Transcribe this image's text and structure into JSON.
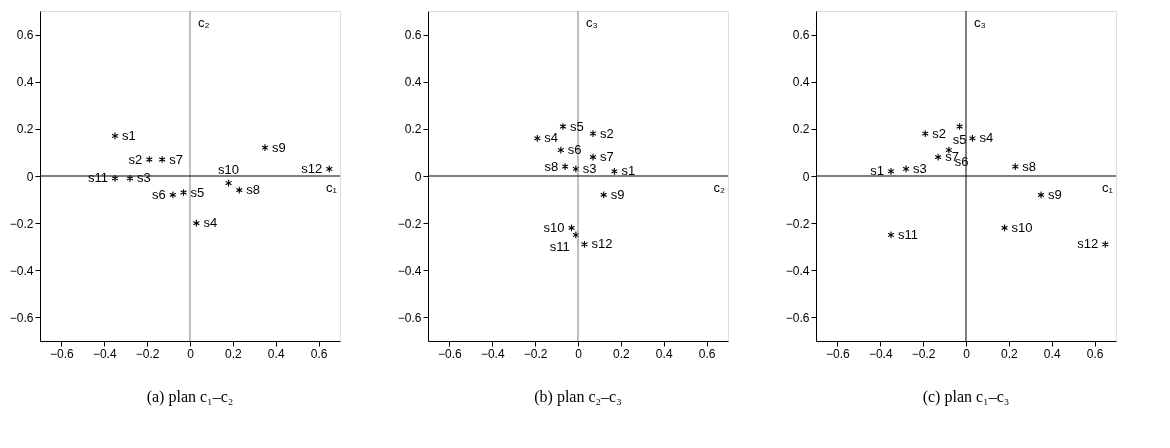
{
  "chart_data": [
    {
      "type": "scatter",
      "title": "(a) plan c₁–c₂",
      "xlabel": "c₁",
      "ylabel": "c₂",
      "marker": "cross",
      "color": "#000000",
      "grid": false,
      "x": [
        -0.35,
        -0.19,
        -0.28,
        0.03,
        -0.03,
        -0.08,
        -0.13,
        0.23,
        0.35,
        0.18,
        -0.35,
        0.65
      ],
      "values": [
        0.17,
        0.07,
        -0.01,
        -0.2,
        -0.07,
        -0.08,
        0.07,
        -0.06,
        0.12,
        -0.03,
        -0.01,
        0.03
      ],
      "xlim": [
        -0.7,
        0.7
      ],
      "ylim": [
        -0.7,
        0.7
      ],
      "xticks": [
        -0.6,
        -0.4,
        -0.2,
        0,
        0.2,
        0.4,
        0.6
      ],
      "yticks": [
        -0.6,
        -0.4,
        -0.2,
        0,
        0.2,
        0.4,
        0.6
      ],
      "ref_lines": [
        {
          "axis": "x",
          "value": 0,
          "color": "#808080"
        },
        {
          "axis": "y",
          "value": 0,
          "color": "#000000"
        }
      ],
      "annotations": [
        {
          "text": "s1",
          "x": -0.35,
          "y": 0.17
        },
        {
          "text": "s2",
          "x": -0.19,
          "y": 0.07
        },
        {
          "text": "s3",
          "x": -0.28,
          "y": -0.01
        },
        {
          "text": "s4",
          "x": 0.03,
          "y": -0.2
        },
        {
          "text": "s5",
          "x": -0.03,
          "y": -0.07
        },
        {
          "text": "s6",
          "x": -0.08,
          "y": -0.08
        },
        {
          "text": "s7",
          "x": -0.13,
          "y": 0.07
        },
        {
          "text": "s8",
          "x": 0.23,
          "y": -0.06
        },
        {
          "text": "s9",
          "x": 0.35,
          "y": 0.12
        },
        {
          "text": "s10",
          "x": 0.18,
          "y": -0.03
        },
        {
          "text": "s11",
          "x": -0.35,
          "y": -0.01
        },
        {
          "text": "s12",
          "x": 0.65,
          "y": 0.03
        }
      ]
    },
    {
      "type": "scatter",
      "title": "(b) plan c₂–c₃",
      "xlabel": "c₂",
      "ylabel": "c₃",
      "marker": "cross",
      "color": "#000000",
      "grid": false,
      "x": [
        0.17,
        0.07,
        -0.01,
        -0.19,
        -0.07,
        -0.08,
        0.07,
        -0.06,
        0.12,
        -0.03,
        -0.01,
        0.03
      ],
      "values": [
        0.02,
        0.18,
        0.03,
        0.16,
        0.21,
        0.11,
        0.08,
        0.04,
        -0.08,
        -0.22,
        -0.25,
        -0.29
      ],
      "xlim": [
        -0.7,
        0.7
      ],
      "ylim": [
        -0.7,
        0.7
      ],
      "xticks": [
        -0.6,
        -0.4,
        -0.2,
        0,
        0.2,
        0.4,
        0.6
      ],
      "yticks": [
        -0.6,
        -0.4,
        -0.2,
        0,
        0.2,
        0.4,
        0.6
      ],
      "ref_lines": [
        {
          "axis": "x",
          "value": 0,
          "color": "#808080"
        },
        {
          "axis": "y",
          "value": 0,
          "color": "#000000"
        }
      ],
      "annotations": [
        {
          "text": "s1",
          "x": 0.17,
          "y": 0.02
        },
        {
          "text": "s2",
          "x": 0.07,
          "y": 0.18
        },
        {
          "text": "s3",
          "x": -0.01,
          "y": 0.03
        },
        {
          "text": "s4",
          "x": -0.19,
          "y": 0.16
        },
        {
          "text": "s5",
          "x": -0.07,
          "y": 0.21
        },
        {
          "text": "s6",
          "x": -0.08,
          "y": 0.11
        },
        {
          "text": "s7",
          "x": 0.07,
          "y": 0.08
        },
        {
          "text": "s8",
          "x": -0.06,
          "y": 0.04
        },
        {
          "text": "s9",
          "x": 0.12,
          "y": -0.08
        },
        {
          "text": "s10",
          "x": -0.03,
          "y": -0.22
        },
        {
          "text": "s11",
          "x": -0.01,
          "y": -0.25
        },
        {
          "text": "s12",
          "x": 0.03,
          "y": -0.29
        }
      ]
    },
    {
      "type": "scatter",
      "title": "(c) plan c₁–c₃",
      "xlabel": "c₁",
      "ylabel": "c₃",
      "marker": "cross",
      "color": "#000000",
      "grid": false,
      "x": [
        -0.35,
        -0.19,
        -0.28,
        0.03,
        -0.03,
        -0.08,
        -0.13,
        0.23,
        0.35,
        0.18,
        -0.35,
        0.65
      ],
      "values": [
        0.02,
        0.18,
        0.03,
        0.16,
        0.21,
        0.11,
        0.08,
        0.04,
        -0.08,
        -0.22,
        -0.25,
        -0.29
      ],
      "xlim": [
        -0.7,
        0.7
      ],
      "ylim": [
        -0.7,
        0.7
      ],
      "xticks": [
        -0.6,
        -0.4,
        -0.2,
        0,
        0.2,
        0.4,
        0.6
      ],
      "yticks": [
        -0.6,
        -0.4,
        -0.2,
        0,
        0.2,
        0.4,
        0.6
      ],
      "ref_lines": [
        {
          "axis": "x",
          "value": 0,
          "color": "#000000"
        },
        {
          "axis": "y",
          "value": 0,
          "color": "#000000"
        }
      ],
      "annotations": [
        {
          "text": "s1",
          "x": -0.35,
          "y": 0.02
        },
        {
          "text": "s2",
          "x": -0.19,
          "y": 0.18
        },
        {
          "text": "s3",
          "x": -0.28,
          "y": 0.03
        },
        {
          "text": "s4",
          "x": 0.03,
          "y": 0.16
        },
        {
          "text": "s5",
          "x": -0.03,
          "y": 0.21
        },
        {
          "text": "s6",
          "x": -0.08,
          "y": 0.11
        },
        {
          "text": "s7",
          "x": -0.13,
          "y": 0.08
        },
        {
          "text": "s8",
          "x": 0.23,
          "y": 0.04
        },
        {
          "text": "s9",
          "x": 0.35,
          "y": -0.08
        },
        {
          "text": "s10",
          "x": 0.18,
          "y": -0.22
        },
        {
          "text": "s11",
          "x": -0.35,
          "y": -0.25
        },
        {
          "text": "s12",
          "x": 0.65,
          "y": -0.29
        }
      ]
    }
  ]
}
